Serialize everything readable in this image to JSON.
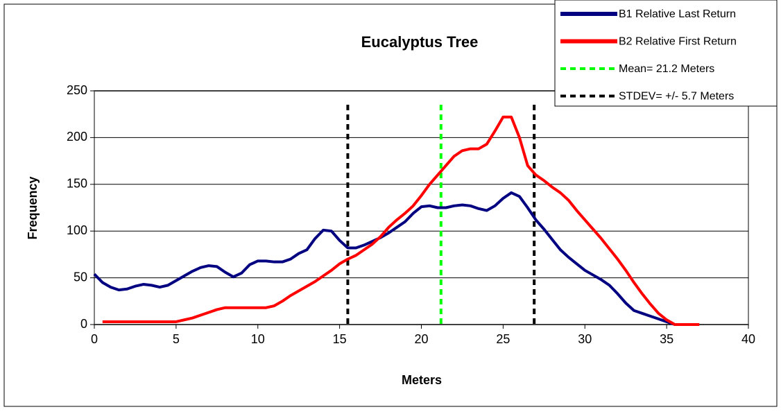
{
  "chart_data": {
    "type": "line",
    "title": "Eucalyptus Tree",
    "x_label": "Meters",
    "y_label": "Frequency",
    "x": [
      0,
      0.5,
      1,
      1.5,
      2,
      2.5,
      3,
      3.5,
      4,
      4.5,
      5,
      5.5,
      6,
      6.5,
      7,
      7.5,
      8,
      8.5,
      9,
      9.5,
      10,
      10.5,
      11,
      11.5,
      12,
      12.5,
      13,
      13.5,
      14,
      14.5,
      15,
      15.5,
      16,
      16.5,
      17,
      17.5,
      18,
      18.5,
      19,
      19.5,
      20,
      20.5,
      21,
      21.5,
      22,
      22.5,
      23,
      23.5,
      24,
      24.5,
      25,
      25.5,
      26,
      26.5,
      27,
      27.5,
      28,
      28.5,
      29,
      29.5,
      30,
      30.5,
      31,
      31.5,
      32,
      32.5,
      33,
      33.5,
      34,
      34.5,
      35,
      35.5,
      36,
      36.5,
      37
    ],
    "series": [
      {
        "name": "B1 Relative Last Return",
        "color": "#000080",
        "values": [
          54,
          45,
          40,
          37,
          38,
          41,
          43,
          42,
          40,
          42,
          47,
          52,
          57,
          61,
          63,
          62,
          56,
          51,
          55,
          64,
          68,
          68,
          67,
          67,
          70,
          76,
          80,
          92,
          101,
          100,
          90,
          82,
          82,
          85,
          89,
          93,
          98,
          104,
          110,
          119,
          126,
          127,
          125,
          125,
          127,
          128,
          127,
          124,
          122,
          127,
          135,
          141,
          137,
          125,
          112,
          102,
          91,
          80,
          72,
          65,
          58,
          53,
          48,
          42,
          33,
          23,
          15,
          12,
          9,
          6,
          3,
          0,
          null,
          null,
          null
        ]
      },
      {
        "name": "B2 Relative First Return",
        "color": "#ff0000",
        "values": [
          null,
          3,
          3,
          3,
          3,
          3,
          3,
          3,
          3,
          3,
          3,
          5,
          7,
          10,
          13,
          16,
          18,
          18,
          18,
          18,
          18,
          18,
          20,
          25,
          31,
          36,
          41,
          46,
          52,
          58,
          65,
          70,
          74,
          80,
          86,
          94,
          104,
          112,
          119,
          127,
          138,
          150,
          160,
          170,
          180,
          186,
          188,
          188,
          193,
          207,
          222,
          222,
          200,
          170,
          160,
          154,
          147,
          141,
          133,
          122,
          112,
          102,
          92,
          81,
          70,
          58,
          45,
          33,
          22,
          12,
          5,
          0,
          0,
          0,
          0
        ]
      }
    ],
    "reference_lines": [
      {
        "name": "Mean= 21.2 Meters",
        "color": "#00ff00",
        "values": [
          21.2
        ]
      },
      {
        "name": "STDEV= +/- 5.7 Meters",
        "color": "#000000",
        "values": [
          15.5,
          26.9
        ]
      }
    ],
    "xlim": [
      0,
      40
    ],
    "xticks": [
      0,
      5,
      10,
      15,
      20,
      25,
      30,
      35,
      40
    ],
    "ylim": [
      0,
      250
    ],
    "yticks": [
      0,
      50,
      100,
      150,
      200,
      250
    ],
    "grid": true,
    "legend": "top-right"
  }
}
